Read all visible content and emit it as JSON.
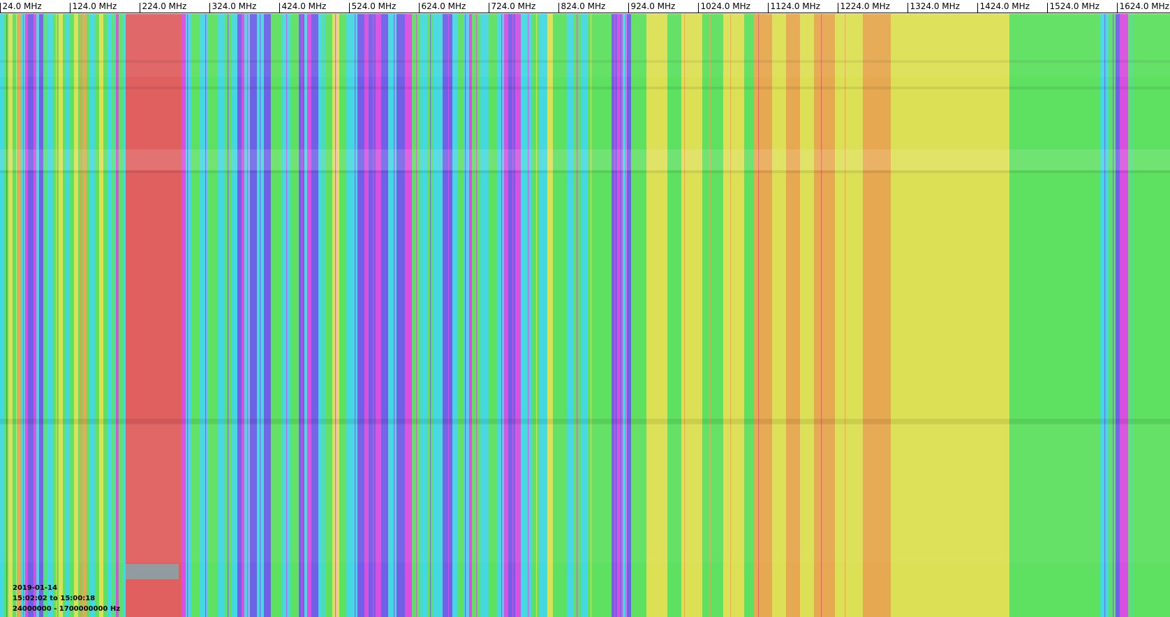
{
  "chart_data": {
    "type": "heatmap",
    "title": "",
    "xlabel": "",
    "ylabel": "",
    "x_tick_labels": [
      "24.0 MHz",
      "124.0 MHz",
      "224.0 MHz",
      "324.0 MHz",
      "424.0 MHz",
      "524.0 MHz",
      "624.0 MHz",
      "724.0 MHz",
      "824.0 MHz",
      "924.0 MHz",
      "1024.0 MHz",
      "1124.0 MHz",
      "1224.0 MHz",
      "1324.0 MHz",
      "1424.0 MHz",
      "1524.0 MHz",
      "1624.0 MHz"
    ],
    "x_ticks_mhz": [
      24,
      124,
      224,
      324,
      424,
      524,
      624,
      724,
      824,
      924,
      1024,
      1124,
      1224,
      1324,
      1424,
      1524,
      1624
    ],
    "xlim_hz": [
      24000000,
      1700000000
    ],
    "time_range": [
      "15:02:02",
      "15:00:18"
    ],
    "colormap": [
      "#7060e8",
      "#44d8e0",
      "#5ee060",
      "#dce054",
      "#e6a850",
      "#e06060",
      "#d850e0"
    ],
    "annotations": {
      "date": "2019-01-14",
      "time_range": "15:02:02 to 15:00:18",
      "frequency_range": "24000000 - 1700000000 Hz"
    }
  }
}
